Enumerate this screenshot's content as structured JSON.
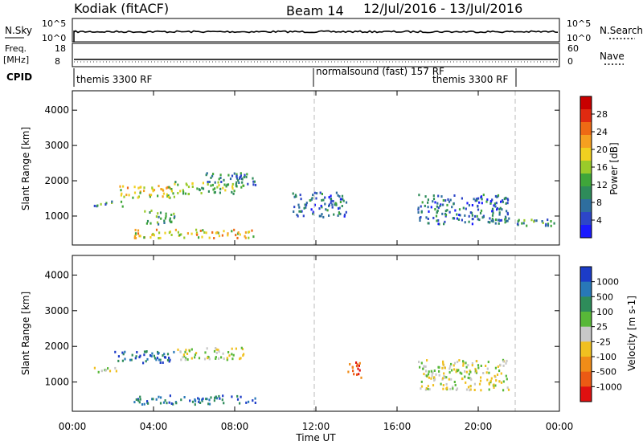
{
  "header": {
    "station": "Kodiak (fitACF)",
    "beam": "Beam 14",
    "dates": "12/Jul/2016 - 13/Jul/2016"
  },
  "summary_panels": {
    "nsky": {
      "label": "N.Sky",
      "ticks_left": [
        "10^5",
        "10^0"
      ],
      "right_label": "N.Search",
      "ticks_right": [
        "10^5",
        "10^0"
      ]
    },
    "freq": {
      "label_top": "Freq.",
      "label_bottom": "[MHz]",
      "ticks_left": [
        "18",
        "8"
      ],
      "right_label": "Nave",
      "ticks_right": [
        "60",
        "0"
      ]
    },
    "cpid": {
      "label": "CPID",
      "programs": [
        {
          "name": "themis 3300 RF",
          "start_hour": 0
        },
        {
          "name": "normalsound (fast) 157 RF",
          "start_hour": 12
        },
        {
          "name": "themis 3300 RF",
          "start_hour": 22
        }
      ]
    }
  },
  "chart_data": [
    {
      "type": "heatmap",
      "name": "power",
      "ylabel": "Slant Range [km]",
      "y_ticks": [
        "1000",
        "2000",
        "3000",
        "4000"
      ],
      "ylim": [
        180,
        4550
      ],
      "colorbar": {
        "label": "Power [dB]",
        "ticks": [
          "4",
          "8",
          "12",
          "16",
          "20",
          "24",
          "28"
        ],
        "range": [
          0,
          32
        ],
        "colors": [
          "#1a1aff",
          "#2d46c8",
          "#2e6e9e",
          "#2e8c5a",
          "#3fa63a",
          "#9acb2a",
          "#f0d020",
          "#f5a020",
          "#ee6a14",
          "#e02a10",
          "#c80000"
        ]
      },
      "echo_regions": [
        {
          "t": [
            1.0,
            2.5
          ],
          "r": [
            1300,
            1450
          ],
          "db": 10
        },
        {
          "t": [
            2.0,
            5.0
          ],
          "r": [
            1550,
            1900
          ],
          "db": 18
        },
        {
          "t": [
            5.0,
            8.5
          ],
          "r": [
            1650,
            2000
          ],
          "db": 14
        },
        {
          "t": [
            6.5,
            9.0
          ],
          "r": [
            1900,
            2250
          ],
          "db": 8
        },
        {
          "t": [
            3.5,
            5.0
          ],
          "r": [
            800,
            1200
          ],
          "db": 12
        },
        {
          "t": [
            3.0,
            9.0
          ],
          "r": [
            400,
            650
          ],
          "db": 20
        },
        {
          "t": [
            10.8,
            13.5
          ],
          "r": [
            1000,
            1700
          ],
          "db": 6
        },
        {
          "t": [
            17.0,
            21.5
          ],
          "r": [
            800,
            1650
          ],
          "db": 6
        },
        {
          "t": [
            21.0,
            23.8
          ],
          "r": [
            750,
            950
          ],
          "db": 10
        }
      ],
      "vertical_marks_hours": [
        12,
        21.8
      ]
    },
    {
      "type": "heatmap",
      "name": "velocity",
      "xlabel": "Time UT",
      "x_ticks": [
        "00:00",
        "04:00",
        "08:00",
        "12:00",
        "16:00",
        "20:00",
        "00:00"
      ],
      "xlim_hours": [
        0,
        24
      ],
      "ylabel": "Slant Range [km]",
      "y_ticks": [
        "1000",
        "2000",
        "3000",
        "4000"
      ],
      "ylim": [
        180,
        4550
      ],
      "colorbar": {
        "label": "Velocity [m s-1]",
        "ticks": [
          "1000",
          "500",
          "100",
          "25",
          "-25",
          "-100",
          "-500",
          "-1000"
        ],
        "colors": [
          "#1c3cc8",
          "#2878b8",
          "#2e8c5a",
          "#58b838",
          "#c8c8c8",
          "#f0c020",
          "#f08c18",
          "#ec5a14",
          "#e01010"
        ]
      },
      "echo_regions": [
        {
          "t": [
            1.0,
            2.5
          ],
          "r": [
            1300,
            1450
          ],
          "vel": "0"
        },
        {
          "t": [
            2.0,
            5.0
          ],
          "r": [
            1550,
            1900
          ],
          "vel": "+500"
        },
        {
          "t": [
            5.0,
            8.5
          ],
          "r": [
            1650,
            2000
          ],
          "vel": "0"
        },
        {
          "t": [
            3.0,
            9.0
          ],
          "r": [
            400,
            650
          ],
          "vel": "+500"
        },
        {
          "t": [
            13.5,
            14.2
          ],
          "r": [
            1100,
            1600
          ],
          "vel": "-500"
        },
        {
          "t": [
            17.0,
            21.5
          ],
          "r": [
            800,
            1650
          ],
          "vel": "0"
        }
      ],
      "vertical_marks_hours": [
        12,
        21.8
      ]
    }
  ]
}
